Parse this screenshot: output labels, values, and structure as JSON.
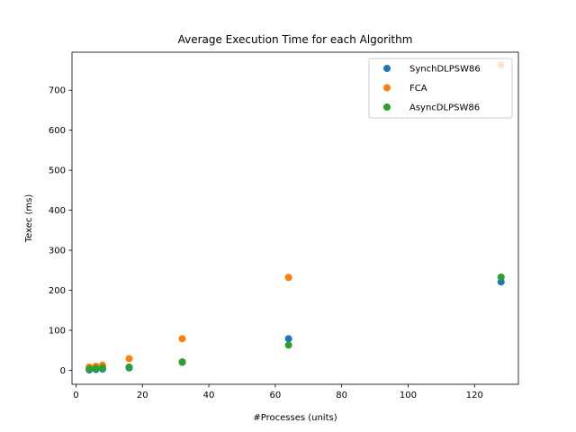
{
  "chart_data": {
    "type": "scatter",
    "title": "Average Execution Time for each Algorithm",
    "xlabel": "#Processes (units)",
    "ylabel": "Texec (ms)",
    "xlim": [
      -1.2,
      133.2
    ],
    "ylim": [
      -35,
      795
    ],
    "xticks": [
      0,
      20,
      40,
      60,
      80,
      100,
      120
    ],
    "yticks": [
      0,
      100,
      200,
      300,
      400,
      500,
      600,
      700
    ],
    "grid": false,
    "legend": "top-right",
    "series": [
      {
        "name": "SynchDLPSW86",
        "color": "#1f77b4",
        "x": [
          4,
          6,
          8,
          16,
          32,
          64,
          128
        ],
        "y": [
          1,
          2,
          3,
          6,
          20,
          79,
          221
        ]
      },
      {
        "name": "FCA",
        "color": "#ff7f0e",
        "x": [
          4,
          6,
          8,
          16,
          32,
          64,
          128
        ],
        "y": [
          8,
          10,
          13,
          29,
          79,
          232,
          763
        ]
      },
      {
        "name": "AsyncDLPSW86",
        "color": "#2ca02c",
        "x": [
          4,
          6,
          8,
          16,
          32,
          64,
          128
        ],
        "y": [
          3,
          5,
          6,
          8,
          21,
          63,
          233
        ]
      }
    ]
  }
}
